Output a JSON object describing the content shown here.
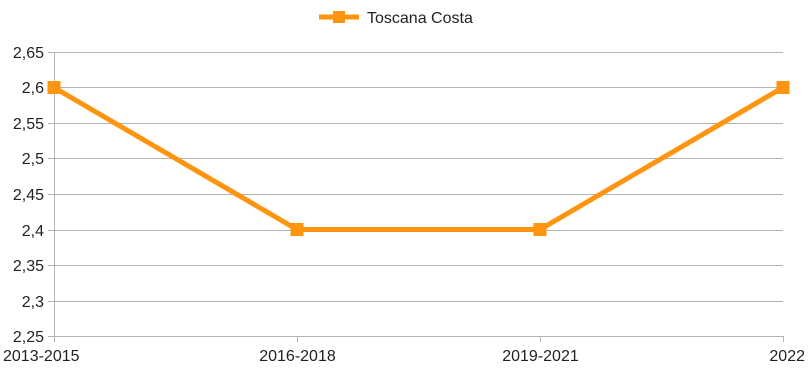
{
  "chart_data": {
    "type": "line",
    "title": "",
    "xlabel": "",
    "ylabel": "",
    "categories": [
      "2013-2015",
      "2016-2018",
      "2019-2021",
      "2022"
    ],
    "series": [
      {
        "name": "Toscana Costa",
        "values": [
          2.6,
          2.4,
          2.4,
          2.6
        ],
        "color": "#ff950e",
        "marker": "square"
      }
    ],
    "ylim": [
      2.25,
      2.65
    ],
    "y_ticks": [
      "2,25",
      "2,3",
      "2,35",
      "2,4",
      "2,45",
      "2,5",
      "2,55",
      "2,6",
      "2,65"
    ],
    "y_tick_values": [
      2.25,
      2.3,
      2.35,
      2.4,
      2.45,
      2.5,
      2.55,
      2.6,
      2.65
    ],
    "grid": true,
    "legend_position": "top-center"
  }
}
